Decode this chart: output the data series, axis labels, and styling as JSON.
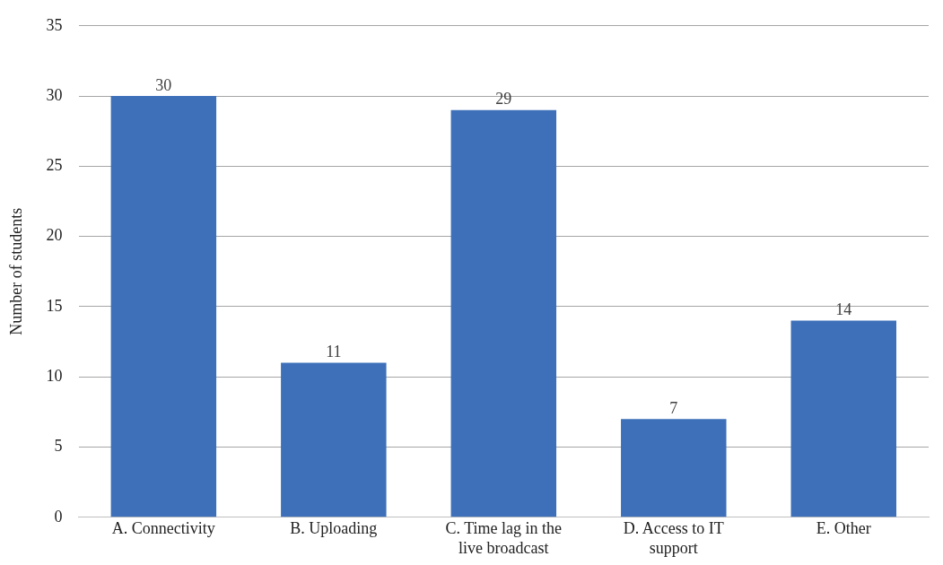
{
  "chart_data": {
    "type": "bar",
    "categories": [
      "A. Connectivity",
      "B. Uploading",
      "C. Time lag in the live broadcast",
      "D. Access to IT support",
      "E. Other"
    ],
    "values": [
      30,
      11,
      29,
      7,
      14
    ],
    "color": "#3d70b9",
    "ylabel": "Number of students",
    "ylim": [
      0,
      35
    ],
    "yticks": [
      0,
      5,
      10,
      15,
      20,
      25,
      30,
      35
    ],
    "grid": "y",
    "legend": false,
    "data_labels": true
  }
}
